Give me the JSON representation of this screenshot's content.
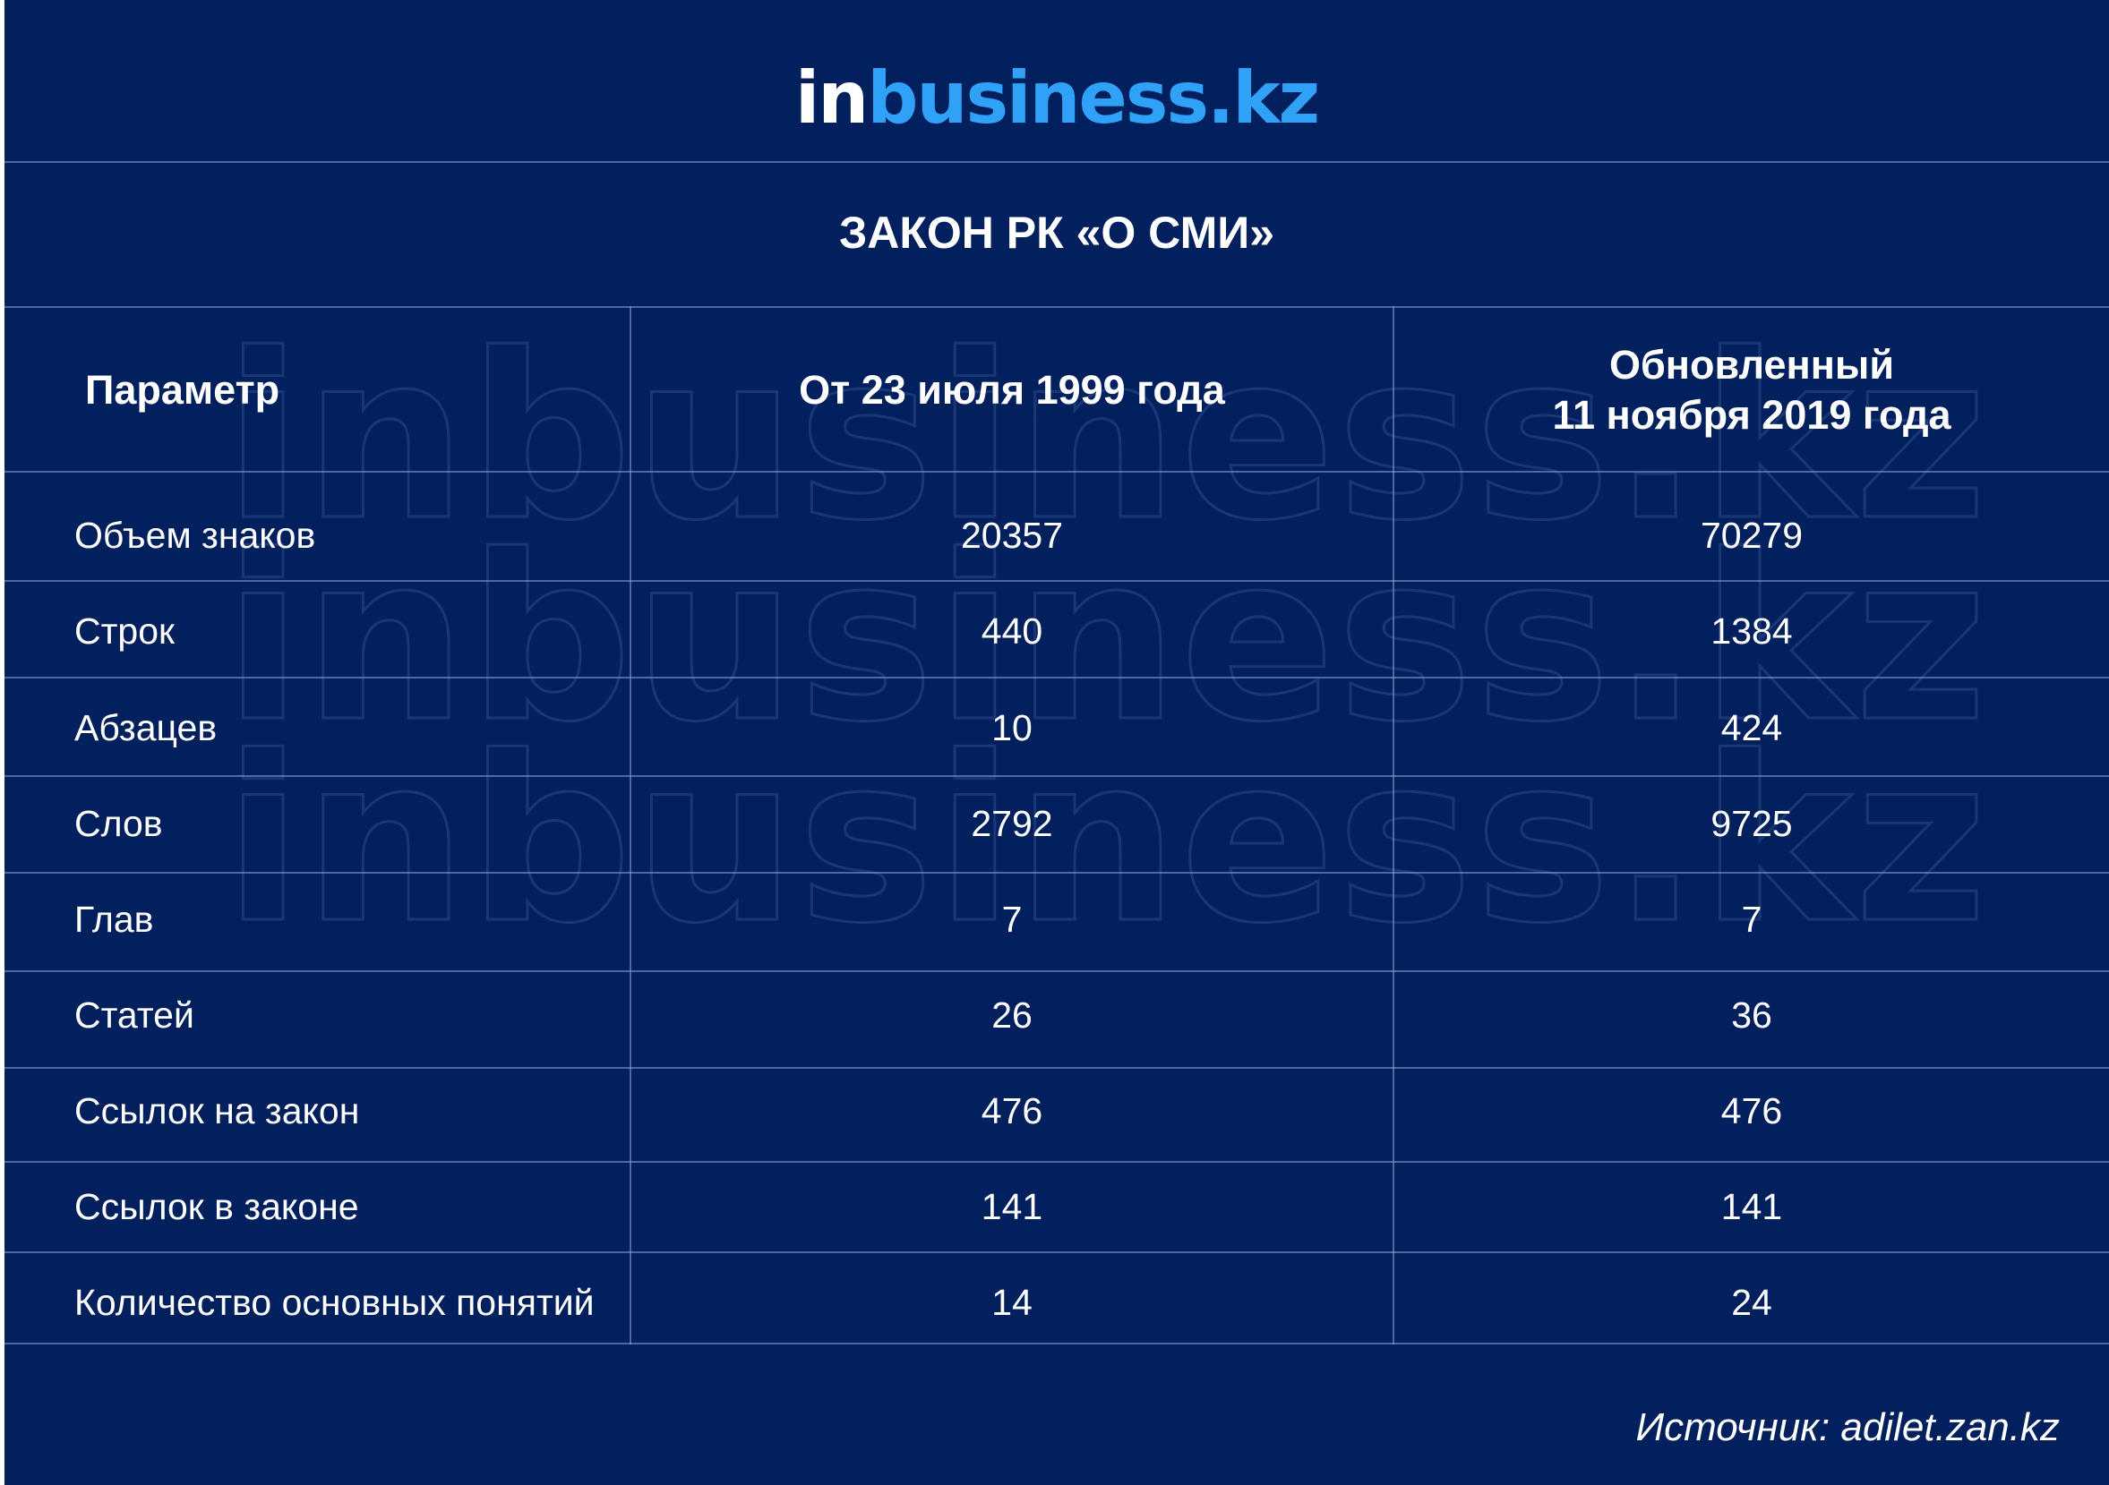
{
  "logo": {
    "part_in": "in",
    "part_rest": "business.kz",
    "accent_color": "#2fa2f7"
  },
  "watermark": {
    "text": "inbusiness.kz"
  },
  "title": "ЗАКОН РК «О СМИ»",
  "table": {
    "headers": {
      "param": "Параметр",
      "col1": "От 23 июля 1999 года",
      "col2_line1": "Обновленный",
      "col2_line2": "11 ноября 2019 года"
    },
    "rows": [
      {
        "param": "Объем знаков",
        "v1999": "20357",
        "v2019": "70279"
      },
      {
        "param": "Строк",
        "v1999": "440",
        "v2019": "1384"
      },
      {
        "param": "Абзацев",
        "v1999": "10",
        "v2019": "424"
      },
      {
        "param": "Слов",
        "v1999": "2792",
        "v2019": "9725"
      },
      {
        "param": "Глав",
        "v1999": "7",
        "v2019": "7"
      },
      {
        "param": "Статей",
        "v1999": "26",
        "v2019": "36"
      },
      {
        "param": "Ссылок на закон",
        "v1999": "476",
        "v2019": "476"
      },
      {
        "param": "Ссылок в законе",
        "v1999": "141",
        "v2019": "141"
      },
      {
        "param": "Количество основных понятий",
        "v1999": "14",
        "v2019": "24"
      }
    ]
  },
  "source": "Источник: adilet.zan.kz",
  "colors": {
    "background": "#03205e",
    "grid_line": "#8ca5d7",
    "text": "#ffffff"
  }
}
